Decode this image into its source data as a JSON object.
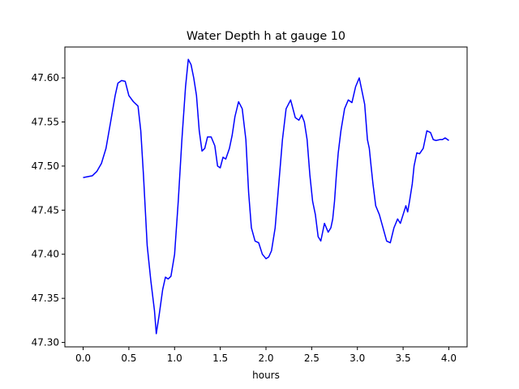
{
  "chart_data": {
    "type": "line",
    "title": "Water Depth h at gauge 10",
    "xlabel": "hours",
    "ylabel": "",
    "xlim": [
      -0.2,
      4.2
    ],
    "ylim": [
      47.295,
      47.635
    ],
    "xticks": [
      0.0,
      0.5,
      1.0,
      1.5,
      2.0,
      2.5,
      3.0,
      3.5,
      4.0
    ],
    "xtick_labels": [
      "0.0",
      "0.5",
      "1.0",
      "1.5",
      "2.0",
      "2.5",
      "3.0",
      "3.5",
      "4.0"
    ],
    "yticks": [
      47.3,
      47.35,
      47.4,
      47.45,
      47.5,
      47.55,
      47.6
    ],
    "ytick_labels": [
      "47.30",
      "47.35",
      "47.40",
      "47.45",
      "47.50",
      "47.55",
      "47.60"
    ],
    "grid": false,
    "legend": "none",
    "series": [
      {
        "color": "#0000ff",
        "x": [
          0.0,
          0.1,
          0.15,
          0.2,
          0.25,
          0.3,
          0.35,
          0.38,
          0.42,
          0.46,
          0.5,
          0.55,
          0.6,
          0.63,
          0.66,
          0.7,
          0.74,
          0.78,
          0.8,
          0.83,
          0.87,
          0.9,
          0.93,
          0.96,
          1.0,
          1.04,
          1.08,
          1.12,
          1.15,
          1.18,
          1.21,
          1.24,
          1.27,
          1.3,
          1.33,
          1.36,
          1.4,
          1.44,
          1.47,
          1.5,
          1.53,
          1.56,
          1.6,
          1.63,
          1.66,
          1.7,
          1.74,
          1.78,
          1.81,
          1.84,
          1.88,
          1.92,
          1.96,
          2.0,
          2.03,
          2.06,
          2.1,
          2.14,
          2.18,
          2.22,
          2.27,
          2.32,
          2.36,
          2.39,
          2.42,
          2.45,
          2.48,
          2.51,
          2.54,
          2.57,
          2.6,
          2.64,
          2.68,
          2.71,
          2.73,
          2.75,
          2.77,
          2.79,
          2.82,
          2.86,
          2.9,
          2.94,
          2.98,
          3.02,
          3.06,
          3.08,
          3.11,
          3.13,
          3.15,
          3.17,
          3.2,
          3.24,
          3.28,
          3.32,
          3.36,
          3.4,
          3.44,
          3.47,
          3.5,
          3.53,
          3.55,
          3.57,
          3.6,
          3.62,
          3.65,
          3.68,
          3.72,
          3.76,
          3.8,
          3.83,
          3.86,
          3.9,
          3.93,
          3.96,
          4.0
        ],
        "y": [
          47.487,
          47.489,
          47.494,
          47.503,
          47.52,
          47.55,
          47.58,
          47.594,
          47.597,
          47.596,
          47.58,
          47.573,
          47.568,
          47.54,
          47.49,
          47.41,
          47.37,
          47.336,
          47.31,
          47.33,
          47.36,
          47.374,
          47.372,
          47.375,
          47.4,
          47.46,
          47.53,
          47.59,
          47.621,
          47.615,
          47.6,
          47.58,
          47.54,
          47.517,
          47.52,
          47.533,
          47.533,
          47.523,
          47.5,
          47.498,
          47.51,
          47.508,
          47.52,
          47.535,
          47.556,
          47.573,
          47.565,
          47.53,
          47.47,
          47.43,
          47.415,
          47.413,
          47.4,
          47.395,
          47.397,
          47.404,
          47.43,
          47.48,
          47.53,
          47.565,
          47.575,
          47.555,
          47.552,
          47.558,
          47.55,
          47.53,
          47.49,
          47.46,
          47.445,
          47.42,
          47.415,
          47.435,
          47.425,
          47.43,
          47.44,
          47.46,
          47.49,
          47.515,
          47.54,
          47.565,
          47.575,
          47.572,
          47.59,
          47.6,
          47.58,
          47.57,
          47.53,
          47.52,
          47.5,
          47.48,
          47.455,
          47.445,
          47.43,
          47.415,
          47.413,
          47.43,
          47.44,
          47.435,
          47.445,
          47.455,
          47.448,
          47.46,
          47.48,
          47.5,
          47.515,
          47.514,
          47.52,
          47.54,
          47.538,
          47.53,
          47.529,
          47.53,
          47.53,
          47.532,
          47.529
        ]
      }
    ]
  }
}
